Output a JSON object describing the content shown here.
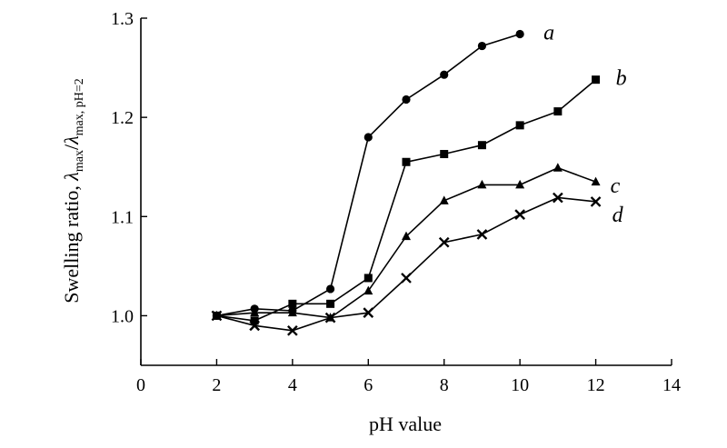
{
  "chart_data": {
    "type": "line",
    "title": "",
    "xlabel": "pH value",
    "ylabel_main": "Swelling ratio, ",
    "ylabel_lambda": "λ",
    "ylabel_sub1": "max",
    "ylabel_slash": "/",
    "ylabel_sub2": "max, pH=2",
    "xlim": [
      0,
      14
    ],
    "ylim": [
      0.95,
      1.3
    ],
    "x_ticks": [
      0,
      2,
      4,
      6,
      8,
      10,
      12,
      14
    ],
    "x_tick_labels": [
      "0",
      "2",
      "4",
      "6",
      "8",
      "10",
      "12",
      "14"
    ],
    "y_ticks": [
      1.0,
      1.1,
      1.2,
      1.3
    ],
    "y_tick_labels": [
      "1.0",
      "1.1",
      "1.2",
      "1.3"
    ],
    "grid": false,
    "legend": "none",
    "series": [
      {
        "name": "a",
        "marker": "circle",
        "x": [
          2,
          3,
          4,
          5,
          6,
          7,
          8,
          9,
          10
        ],
        "y": [
          1.0,
          1.007,
          1.005,
          1.027,
          1.18,
          1.218,
          1.243,
          1.272,
          1.284
        ]
      },
      {
        "name": "b",
        "marker": "square",
        "x": [
          2,
          3,
          4,
          5,
          6,
          7,
          8,
          9,
          10,
          11,
          12
        ],
        "y": [
          1.0,
          0.995,
          1.012,
          1.012,
          1.038,
          1.155,
          1.163,
          1.172,
          1.192,
          1.206,
          1.238
        ]
      },
      {
        "name": "c",
        "marker": "triangle",
        "x": [
          2,
          3,
          4,
          5,
          6,
          7,
          8,
          9,
          10,
          11,
          12
        ],
        "y": [
          1.0,
          1.003,
          1.003,
          0.998,
          1.025,
          1.08,
          1.116,
          1.132,
          1.132,
          1.149,
          1.135
        ]
      },
      {
        "name": "d",
        "marker": "x",
        "x": [
          2,
          3,
          4,
          5,
          6,
          7,
          8,
          9,
          10,
          11,
          12
        ],
        "y": [
          1.0,
          0.99,
          0.985,
          0.998,
          1.003,
          1.038,
          1.074,
          1.082,
          1.102,
          1.119,
          1.115
        ]
      }
    ]
  }
}
